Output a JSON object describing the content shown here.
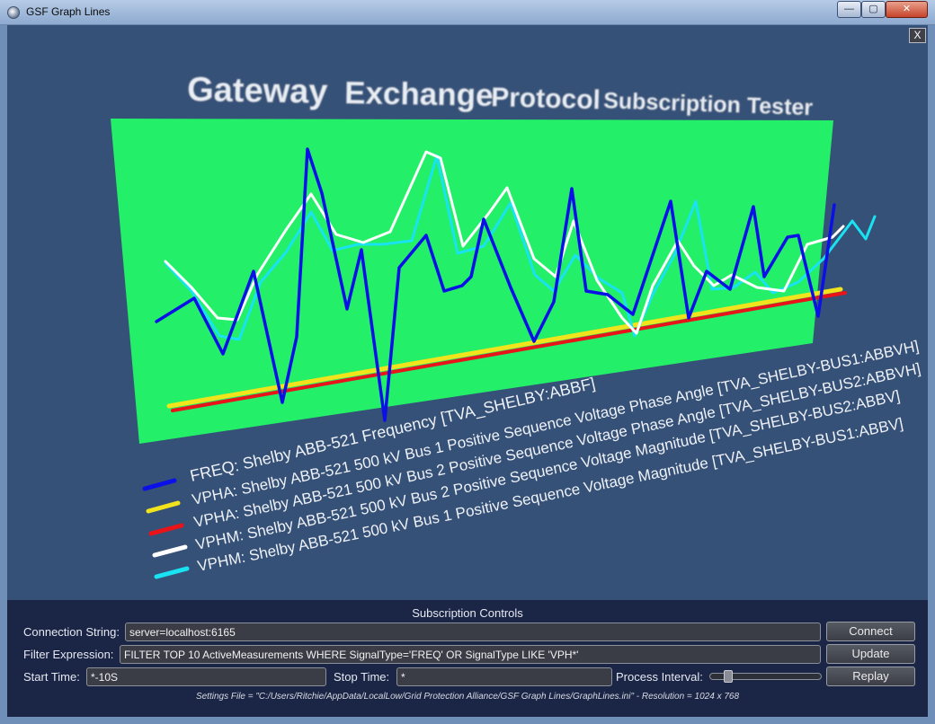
{
  "window": {
    "title": "GSF Graph Lines",
    "minimize_glyph": "—",
    "maximize_glyph": "▢",
    "close_glyph": "✕"
  },
  "scene": {
    "close_label": "X",
    "heading": {
      "word1": "Gateway",
      "word2": "Exchange",
      "word3": "Protocol",
      "word4": "Subscription Tester"
    },
    "plot_color": "#23ef68",
    "legend": [
      {
        "color": "#0a10e6",
        "label": "FREQ: Shelby ABB-521 Frequency [TVA_SHELBY:ABBF]"
      },
      {
        "color": "#f2e41c",
        "label": "VPHA: Shelby ABB-521 500 kV Bus 1 Positive Sequence Voltage Phase Angle [TVA_SHELBY-BUS1:ABBVH]"
      },
      {
        "color": "#e8141a",
        "label": "VPHA: Shelby ABB-521 500 kV Bus 2 Positive Sequence Voltage Phase Angle [TVA_SHELBY-BUS2:ABBVH]"
      },
      {
        "color": "#ffffff",
        "label": "VPHM: Shelby ABB-521 500 kV Bus 2 Positive Sequence Voltage Magnitude [TVA_SHELBY-BUS2:ABBV]"
      },
      {
        "color": "#19e3f2",
        "label": "VPHM: Shelby ABB-521 500 kV Bus 1 Positive Sequence Voltage Magnitude [TVA_SHELBY-BUS1:ABBV]"
      }
    ]
  },
  "controls": {
    "title": "Subscription Controls",
    "connection_label": "Connection String:",
    "connection_value": "server=localhost:6165",
    "connect_button": "Connect",
    "filter_label": "Filter Expression:",
    "filter_value": "FILTER TOP 10 ActiveMeasurements WHERE SignalType='FREQ' OR SignalType LIKE 'VPH*'",
    "update_button": "Update",
    "start_label": "Start Time:",
    "start_value": "*-10S",
    "stop_label": "Stop Time:",
    "stop_value": "*",
    "interval_label": "Process Interval:",
    "process_interval_fraction": 0.13,
    "replay_button": "Replay",
    "settings_text": "Settings File = \"C:/Users/Ritchie/AppData/LocalLow/Grid Protection Alliance/GSF Graph Lines/GraphLines.ini\" - Resolution = 1024 x 768"
  }
}
